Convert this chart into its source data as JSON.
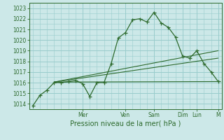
{
  "title": "Pression niveau de la mer( hPa )",
  "ylabel_ticks": [
    1014,
    1015,
    1016,
    1017,
    1018,
    1019,
    1020,
    1021,
    1022,
    1023
  ],
  "ylim": [
    1013.5,
    1023.5
  ],
  "xlim": [
    -0.5,
    26.5
  ],
  "background_color": "#cce8e8",
  "grid_major_color": "#99cccc",
  "grid_minor_color": "#b8dddd",
  "line_color": "#2d6a2d",
  "main_x": [
    0,
    1,
    2,
    3,
    4,
    5,
    6,
    7,
    8,
    9,
    10,
    11,
    12,
    13,
    14,
    15,
    16,
    17,
    18,
    19,
    20,
    21,
    22,
    23,
    24,
    25,
    26
  ],
  "main_y": [
    1013.8,
    1014.8,
    1015.3,
    1016.0,
    1016.0,
    1016.1,
    1016.2,
    1015.9,
    1014.7,
    1016.0,
    1016.0,
    1017.8,
    1020.2,
    1020.7,
    1021.9,
    1022.0,
    1021.7,
    1022.6,
    1021.6,
    1021.2,
    1020.3,
    1018.5,
    1018.3,
    1019.0,
    1017.8,
    1017.0,
    1016.1
  ],
  "trend_lines": [
    {
      "x": [
        3,
        26
      ],
      "y": [
        1016.05,
        1019.0
      ]
    },
    {
      "x": [
        3,
        26
      ],
      "y": [
        1016.05,
        1018.3
      ]
    },
    {
      "x": [
        3,
        26
      ],
      "y": [
        1016.05,
        1016.1
      ]
    }
  ],
  "day_ticks_x": [
    7,
    13,
    17,
    21,
    23,
    26
  ],
  "day_labels": [
    "Mer",
    "Ven",
    "Sam",
    "Dim",
    "Lun",
    "M"
  ],
  "title_fontsize": 7.0,
  "tick_fontsize": 5.5,
  "marker_size": 2.0
}
